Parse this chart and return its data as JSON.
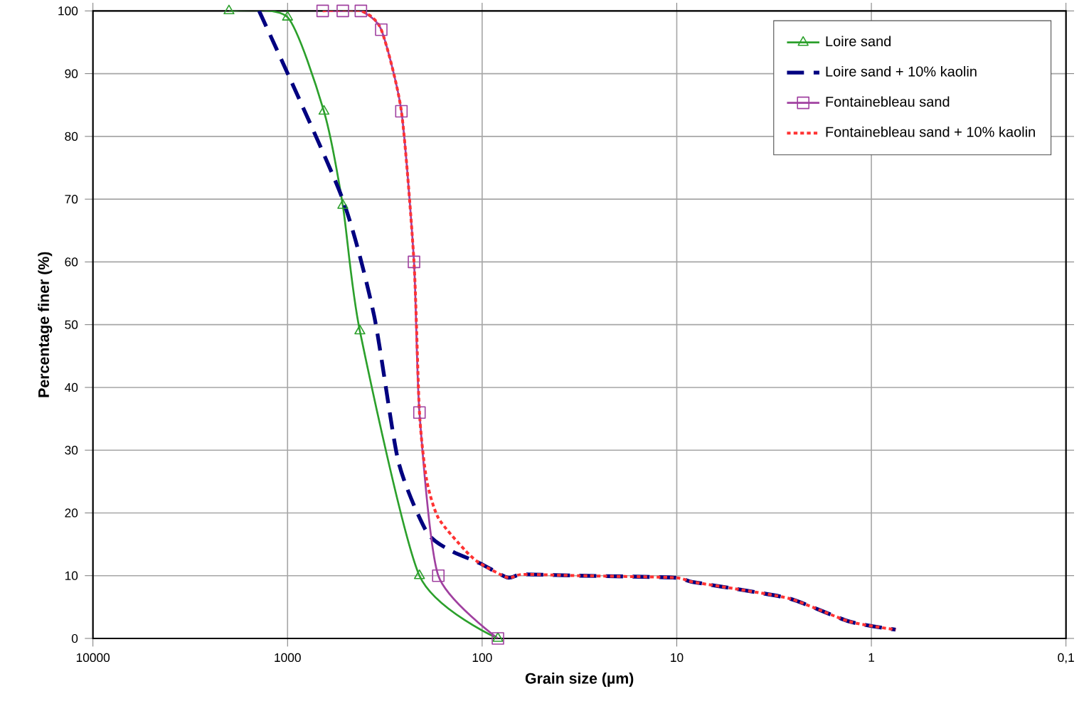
{
  "chart_data": {
    "type": "line",
    "xlabel": "Grain size (µm)",
    "ylabel": "Percentage finer (%)",
    "log": "x",
    "xlim": [
      10000,
      0.1
    ],
    "xticks": [
      10000,
      1000,
      100,
      10,
      1,
      {
        "value": 0.1,
        "label": "0,1"
      }
    ],
    "ylim": [
      0,
      100
    ],
    "yticks": [
      0,
      10,
      20,
      30,
      40,
      50,
      60,
      70,
      80,
      90,
      100
    ],
    "grid": true,
    "legend": "top right",
    "series": [
      {
        "name": "Loire sand",
        "color": "#2ca02c",
        "marker": "triangle",
        "line_style": "solid",
        "x": [
          2000,
          1000,
          650,
          520,
          425,
          210,
          83
        ],
        "values": [
          100,
          99,
          84,
          69,
          49,
          10,
          0
        ]
      },
      {
        "name": "Loire sand + 10% kaolin",
        "color": "#000080",
        "line_style": "dashed",
        "x": [
          1400,
          530,
          360,
          270,
          193,
          145,
          103,
          74,
          62,
          32,
          10.5,
          8.3,
          5,
          2.6,
          1.3,
          0.75
        ],
        "values": [
          100,
          70.6,
          51.6,
          28.3,
          17,
          14,
          12,
          9.7,
          10.2,
          10,
          9.7,
          9,
          7.9,
          6.3,
          2.7,
          1.4
        ]
      },
      {
        "name": "Fontainebleau sand",
        "color": "#a040a0",
        "marker": "square",
        "line_style": "solid",
        "x": [
          660,
          520,
          420,
          330,
          260,
          224,
          210,
          168,
          83
        ],
        "values": [
          100,
          100,
          100,
          97,
          84,
          60,
          36,
          10,
          0
        ]
      },
      {
        "name": "Fontainebleau sand + 10% kaolin",
        "color": "#ff3333",
        "line_style": "dotted",
        "x": [
          660,
          420,
          330,
          260,
          224,
          210,
          193,
          168,
          122,
          103,
          74,
          62,
          32,
          10.5,
          8.3,
          5,
          2.6,
          1.3,
          0.75
        ],
        "values": [
          100,
          100,
          97,
          84,
          60,
          36,
          25.3,
          19.2,
          14,
          12,
          9.7,
          10.2,
          10,
          9.7,
          9,
          7.9,
          6.3,
          2.7,
          1.4
        ]
      }
    ]
  }
}
